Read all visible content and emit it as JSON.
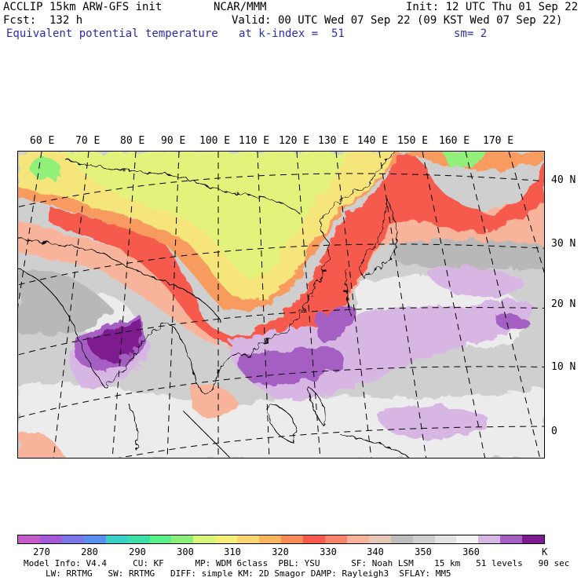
{
  "header": {
    "model_line": "ACCLIP 15km ARW-GFS init",
    "org": "NCAR/MMM",
    "init": "Init: 12 UTC Thu 01 Sep 22",
    "fcst": "Fcst:  132 h",
    "valid": "Valid: 00 UTC Wed 07 Sep 22 (09 KST Wed 07 Sep 22)",
    "field": "Equivalent potential temperature",
    "level": "at k-index =  51",
    "smooth": "sm= 2"
  },
  "map": {
    "lon_labels": [
      "60 E",
      "70 E",
      "80 E",
      "90 E",
      "100 E",
      "110 E",
      "120 E",
      "130 E",
      "140 E",
      "150 E",
      "160 E",
      "170 E"
    ],
    "lat_labels": [
      "40 N",
      "30 N",
      "20 N",
      "10 N",
      "0"
    ],
    "colors": {
      "hot": "#f65a4d",
      "warm": "#f7b49a",
      "orange": "#f89b5e",
      "yellow": "#f5e57a",
      "yellowgreen": "#e3f27a",
      "green": "#90f07a",
      "grey_dark": "#b8b8b8",
      "grey": "#cfcfcf",
      "grey_light": "#ececec",
      "lilac": "#d8b6e4",
      "purple_mid": "#a55fc2",
      "purple_dark": "#7e1a8f"
    }
  },
  "colorbar": {
    "colors": [
      "#c65ac8",
      "#a45ad8",
      "#7a78e8",
      "#5a8ef0",
      "#3ad0c8",
      "#3ae0a8",
      "#5af08a",
      "#8af07a",
      "#d8f57a",
      "#f5ef7a",
      "#f8d570",
      "#f8b560",
      "#f88a55",
      "#f65a4d",
      "#f7846a",
      "#f7b49a",
      "#e6c8b8",
      "#bdbdbd",
      "#cfcfcf",
      "#e4e4e4",
      "#f5f5f5",
      "#d8b6e4",
      "#a55fc2",
      "#7e1a8f"
    ],
    "ticks": [
      "270",
      "280",
      "290",
      "300",
      "310",
      "320",
      "330",
      "340",
      "350",
      "360"
    ],
    "unit": "K"
  },
  "footer": {
    "line1": "Model Info: V4.4     CU: KF      MP: WDM 6class  PBL: YSU      SF: Noah LSM    15 km   51 levels   90 sec",
    "line2": "LW: RRTMG   SW: RRTMG   DIFF: simple KM: 2D Smagor DAMP: Rayleigh3  SFLAY: MM5"
  }
}
